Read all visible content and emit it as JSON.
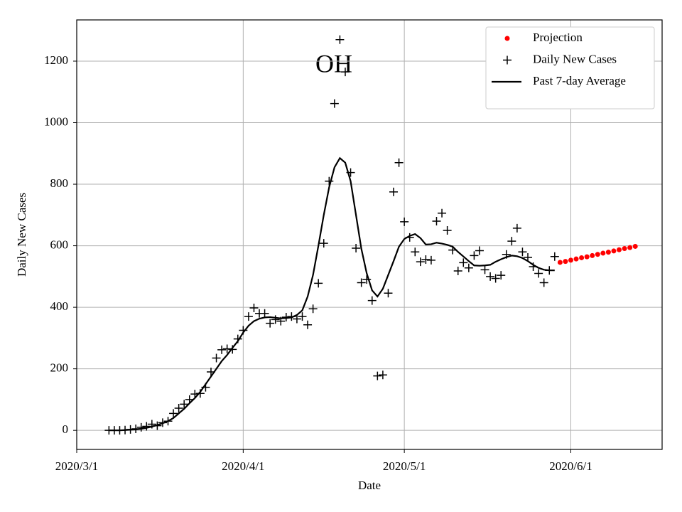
{
  "chart_data": {
    "type": "line",
    "title": "OH",
    "x_label": "Date",
    "y_label": "Daily New Cases",
    "xlim": [
      "2020/3/1",
      "2020/6/18"
    ],
    "xticks": [
      "2020/3/1",
      "2020/4/1",
      "2020/5/1",
      "2020/6/1"
    ],
    "ylim": [
      -62,
      1334
    ],
    "yticks": [
      0,
      200,
      400,
      600,
      800,
      1000,
      1200
    ],
    "grid": true,
    "legend": "upper right",
    "x": [
      "2020/3/7",
      "2020/3/8",
      "2020/3/9",
      "2020/3/10",
      "2020/3/11",
      "2020/3/12",
      "2020/3/13",
      "2020/3/14",
      "2020/3/15",
      "2020/3/16",
      "2020/3/17",
      "2020/3/18",
      "2020/3/19",
      "2020/3/20",
      "2020/3/21",
      "2020/3/22",
      "2020/3/23",
      "2020/3/24",
      "2020/3/25",
      "2020/3/26",
      "2020/3/27",
      "2020/3/28",
      "2020/3/29",
      "2020/3/30",
      "2020/3/31",
      "2020/4/1",
      "2020/4/2",
      "2020/4/3",
      "2020/4/4",
      "2020/4/5",
      "2020/4/6",
      "2020/4/7",
      "2020/4/8",
      "2020/4/9",
      "2020/4/10",
      "2020/4/11",
      "2020/4/12",
      "2020/4/13",
      "2020/4/14",
      "2020/4/15",
      "2020/4/16",
      "2020/4/17",
      "2020/4/18",
      "2020/4/19",
      "2020/4/20",
      "2020/4/21",
      "2020/4/22",
      "2020/4/23",
      "2020/4/24",
      "2020/4/25",
      "2020/4/26",
      "2020/4/27",
      "2020/4/28",
      "2020/4/29",
      "2020/4/30",
      "2020/5/1",
      "2020/5/2",
      "2020/5/3",
      "2020/5/4",
      "2020/5/5",
      "2020/5/6",
      "2020/5/7",
      "2020/5/8",
      "2020/5/9",
      "2020/5/10",
      "2020/5/11",
      "2020/5/12",
      "2020/5/13",
      "2020/5/14",
      "2020/5/15",
      "2020/5/16",
      "2020/5/17",
      "2020/5/18",
      "2020/5/19",
      "2020/5/20",
      "2020/5/21",
      "2020/5/22",
      "2020/5/23",
      "2020/5/24",
      "2020/5/25",
      "2020/5/26",
      "2020/5/27",
      "2020/5/28",
      "2020/5/29"
    ],
    "series": [
      {
        "name": "Projection",
        "style": "dot",
        "color": "#ff0000",
        "x": [
          "2020/5/30",
          "2020/5/31",
          "2020/6/1",
          "2020/6/2",
          "2020/6/3",
          "2020/6/4",
          "2020/6/5",
          "2020/6/6",
          "2020/6/7",
          "2020/6/8",
          "2020/6/9",
          "2020/6/10",
          "2020/6/11",
          "2020/6/12",
          "2020/6/13"
        ],
        "values": [
          546,
          549,
          553,
          557,
          561,
          564,
          568,
          572,
          576,
          579,
          583,
          587,
          591,
          594,
          598
        ]
      },
      {
        "name": "Daily New Cases",
        "style": "plus",
        "color": "#000000",
        "values": [
          0,
          0,
          0,
          1,
          3,
          5,
          10,
          13,
          20,
          15,
          25,
          30,
          55,
          72,
          85,
          100,
          118,
          120,
          140,
          190,
          235,
          262,
          265,
          263,
          297,
          325,
          370,
          398,
          380,
          380,
          348,
          360,
          355,
          368,
          370,
          362,
          370,
          343,
          395,
          478,
          608,
          810,
          1062,
          1270,
          1165,
          838,
          592,
          480,
          490,
          422,
          177,
          180,
          446,
          775,
          870,
          678,
          627,
          580,
          548,
          555,
          553,
          680,
          706,
          650,
          586,
          518,
          545,
          528,
          568,
          584,
          522,
          500,
          494,
          504,
          572,
          615,
          657,
          580,
          562,
          532,
          510,
          480,
          520,
          565
        ]
      },
      {
        "name": "Past 7-day Average",
        "style": "line",
        "color": "#000000",
        "values": [
          0,
          0,
          0,
          1,
          2,
          3,
          5,
          8,
          12,
          17,
          23,
          30,
          40,
          55,
          70,
          88,
          105,
          125,
          150,
          175,
          200,
          225,
          245,
          268,
          290,
          318,
          340,
          355,
          363,
          367,
          368,
          366,
          364,
          365,
          367,
          375,
          390,
          435,
          505,
          600,
          700,
          790,
          855,
          885,
          870,
          810,
          700,
          590,
          510,
          455,
          435,
          460,
          505,
          550,
          597,
          622,
          632,
          638,
          625,
          604,
          605,
          610,
          607,
          603,
          597,
          580,
          565,
          550,
          536,
          535,
          536,
          538,
          548,
          556,
          563,
          568,
          566,
          560,
          550,
          538,
          528,
          522,
          520,
          520
        ]
      }
    ]
  }
}
